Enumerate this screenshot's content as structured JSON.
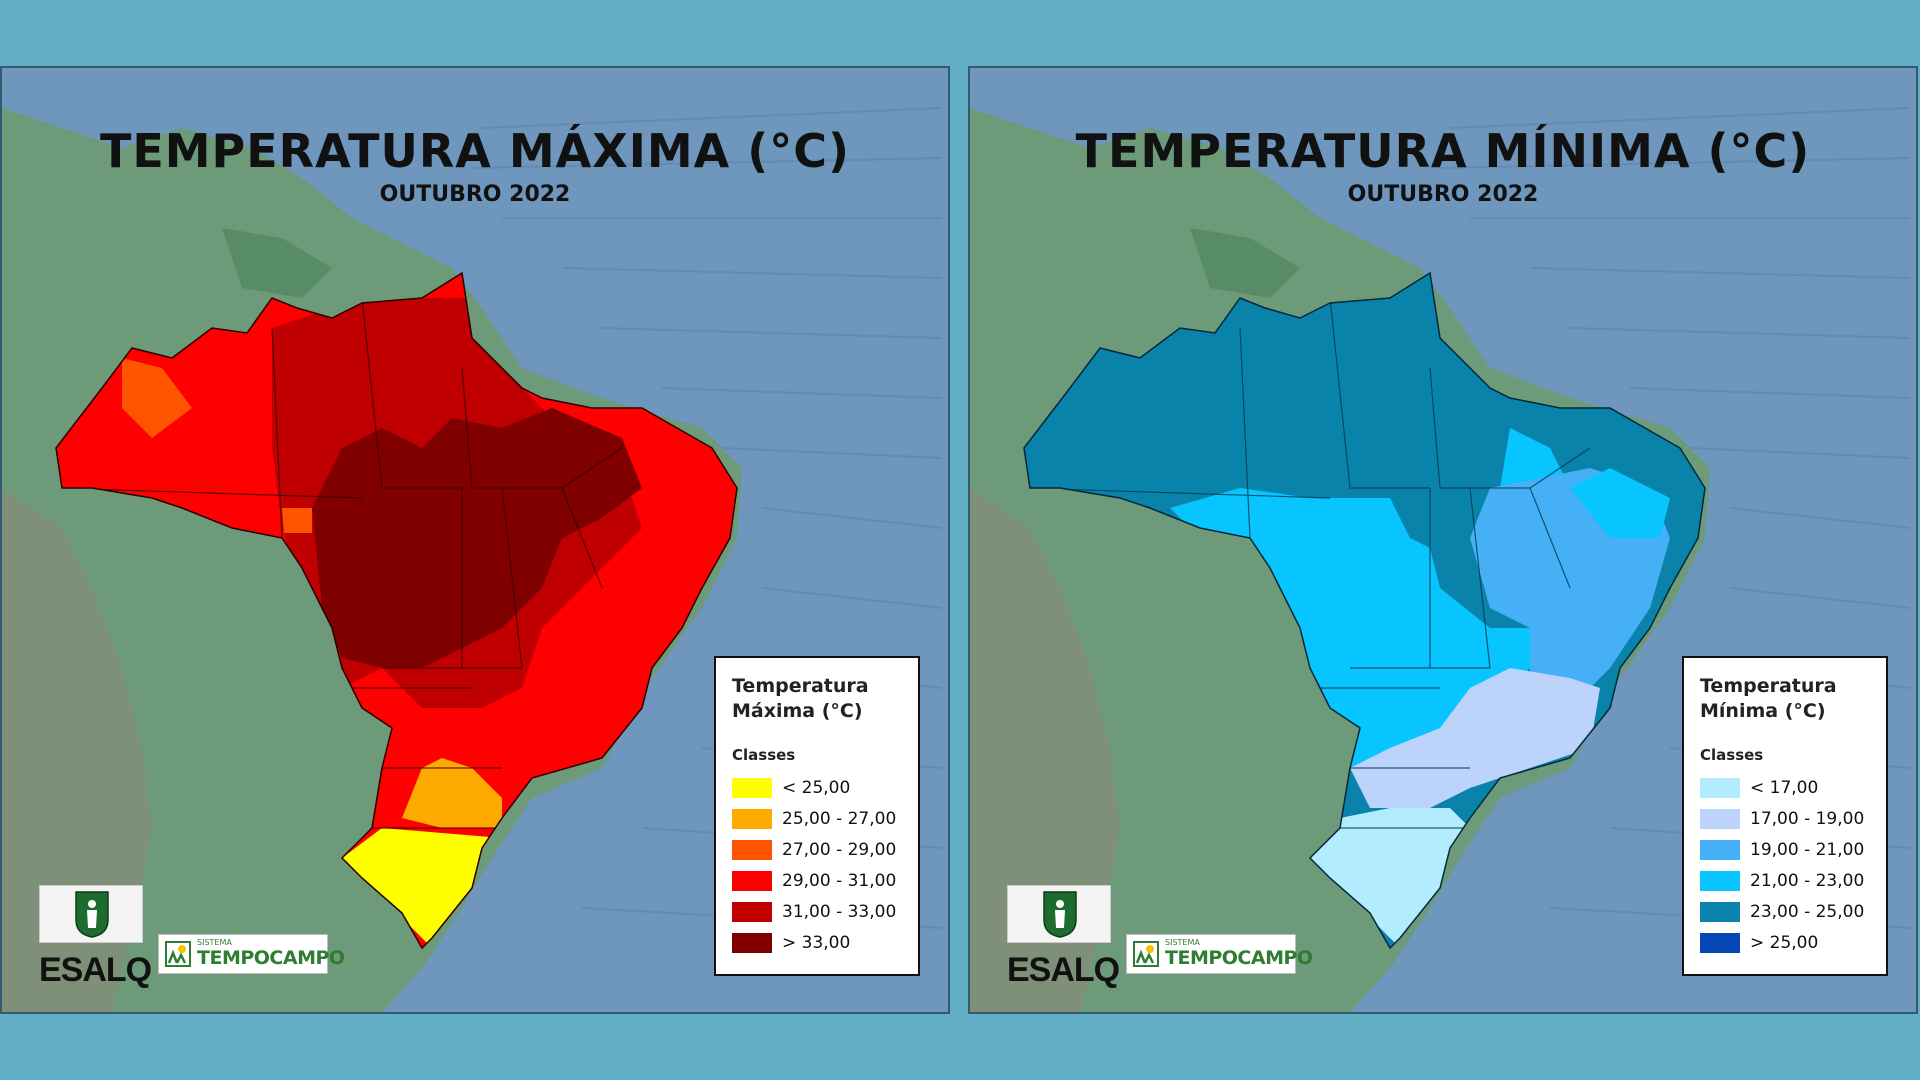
{
  "maps": [
    {
      "id": "max",
      "title": "TEMPERATURA MÁXIMA (°C)",
      "subtitle": "OUTUBRO 2022",
      "legend_title_line1": "Temperatura",
      "legend_title_line2": "Máxima (°C)",
      "legend_classes_label": "Classes",
      "classes": [
        {
          "label": "< 25,00",
          "color": "#ffff00"
        },
        {
          "label": "25,00 - 27,00",
          "color": "#ffaa00"
        },
        {
          "label": "27,00 - 29,00",
          "color": "#ff5500"
        },
        {
          "label": "29,00 - 31,00",
          "color": "#ff0000"
        },
        {
          "label": "31,00 - 33,00",
          "color": "#c00000"
        },
        {
          "label": "> 33,00",
          "color": "#800000"
        }
      ],
      "logo_esalq": "ESALQ",
      "logo_tempo_small": "SISTEMA",
      "logo_tempo_big": "TEMPOCAMPO"
    },
    {
      "id": "min",
      "title": "TEMPERATURA MÍNIMA (°C)",
      "subtitle": "OUTUBRO 2022",
      "legend_title_line1": "Temperatura",
      "legend_title_line2": "Mínima (°C)",
      "legend_classes_label": "Classes",
      "classes": [
        {
          "label": "< 17,00",
          "color": "#b3ecff"
        },
        {
          "label": "17,00 - 19,00",
          "color": "#bcd3fb"
        },
        {
          "label": "19,00 - 21,00",
          "color": "#45b0f5"
        },
        {
          "label": "21,00 - 23,00",
          "color": "#08c4ff"
        },
        {
          "label": "23,00 - 25,00",
          "color": "#0a83aa"
        },
        {
          "label": "> 25,00",
          "color": "#0747b5"
        }
      ],
      "logo_esalq": "ESALQ",
      "logo_tempo_small": "SISTEMA",
      "logo_tempo_big": "TEMPOCAMPO"
    }
  ],
  "colors": {
    "page_background": "#62aec4",
    "ocean": "#6f96bd",
    "land": "#6d9a78"
  }
}
